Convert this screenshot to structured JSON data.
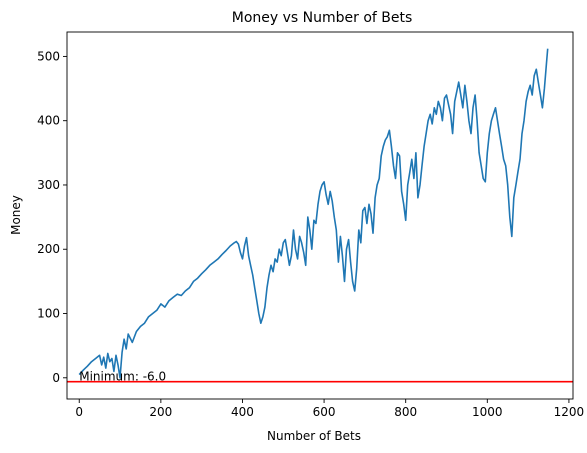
{
  "chart_data": {
    "type": "line",
    "title": "Money vs Number of Bets",
    "xlabel": "Number of Bets",
    "ylabel": "Money",
    "xlim": [
      -30,
      1210
    ],
    "ylim": [
      -33,
      538
    ],
    "xticks": [
      0,
      200,
      400,
      600,
      800,
      1000,
      1200
    ],
    "yticks": [
      0,
      100,
      200,
      300,
      400,
      500
    ],
    "grid": false,
    "series_color": "#1f77b4",
    "hline": {
      "y": -6,
      "color": "#ff0000"
    },
    "annotation": {
      "text": "Minimum: -6.0",
      "x": 0,
      "y": -6
    },
    "series": [
      {
        "x": [
          0,
          10,
          20,
          30,
          40,
          50,
          55,
          60,
          65,
          70,
          75,
          80,
          85,
          90,
          95,
          100,
          105,
          110,
          115,
          120,
          130,
          140,
          150,
          160,
          170,
          180,
          190,
          200,
          210,
          220,
          230,
          240,
          250,
          260,
          270,
          280,
          290,
          300,
          310,
          320,
          330,
          340,
          350,
          360,
          370,
          380,
          385,
          390,
          395,
          400,
          405,
          410,
          415,
          420,
          425,
          430,
          435,
          440,
          445,
          450,
          455,
          460,
          465,
          470,
          475,
          480,
          485,
          490,
          495,
          500,
          505,
          510,
          515,
          520,
          525,
          530,
          535,
          540,
          545,
          550,
          555,
          560,
          565,
          570,
          575,
          580,
          585,
          590,
          595,
          600,
          605,
          610,
          615,
          620,
          625,
          630,
          635,
          640,
          645,
          650,
          655,
          660,
          665,
          670,
          675,
          680,
          685,
          690,
          695,
          700,
          705,
          710,
          715,
          720,
          725,
          730,
          735,
          740,
          745,
          750,
          755,
          760,
          765,
          770,
          775,
          780,
          785,
          790,
          795,
          800,
          805,
          810,
          815,
          820,
          825,
          830,
          835,
          840,
          845,
          850,
          855,
          860,
          865,
          870,
          875,
          880,
          885,
          890,
          895,
          900,
          905,
          910,
          915,
          920,
          925,
          930,
          935,
          940,
          945,
          950,
          955,
          960,
          965,
          970,
          975,
          980,
          985,
          990,
          995,
          1000,
          1005,
          1010,
          1015,
          1020,
          1025,
          1030,
          1035,
          1040,
          1045,
          1050,
          1055,
          1060,
          1065,
          1070,
          1075,
          1080,
          1085,
          1090,
          1095,
          1100,
          1105,
          1110,
          1115,
          1120,
          1125,
          1130,
          1135,
          1140,
          1145,
          1148
        ],
        "values": [
          5,
          12,
          18,
          25,
          30,
          35,
          20,
          32,
          15,
          38,
          25,
          30,
          10,
          35,
          20,
          0,
          40,
          60,
          45,
          68,
          55,
          72,
          80,
          85,
          95,
          100,
          105,
          115,
          110,
          120,
          125,
          130,
          128,
          135,
          140,
          150,
          155,
          162,
          168,
          175,
          180,
          185,
          192,
          198,
          205,
          210,
          212,
          208,
          195,
          185,
          205,
          218,
          190,
          175,
          160,
          140,
          120,
          100,
          85,
          95,
          110,
          140,
          160,
          175,
          165,
          185,
          180,
          200,
          190,
          210,
          215,
          195,
          175,
          190,
          230,
          200,
          185,
          220,
          210,
          195,
          175,
          250,
          230,
          200,
          245,
          240,
          270,
          290,
          300,
          305,
          285,
          270,
          290,
          275,
          250,
          230,
          180,
          220,
          190,
          150,
          200,
          215,
          180,
          150,
          135,
          170,
          230,
          210,
          260,
          265,
          240,
          270,
          255,
          225,
          280,
          300,
          310,
          345,
          360,
          370,
          375,
          385,
          360,
          330,
          310,
          350,
          345,
          290,
          270,
          245,
          300,
          320,
          340,
          310,
          350,
          280,
          300,
          330,
          360,
          380,
          400,
          410,
          395,
          420,
          410,
          430,
          420,
          400,
          435,
          440,
          425,
          410,
          380,
          430,
          445,
          460,
          440,
          420,
          455,
          430,
          400,
          380,
          420,
          440,
          400,
          350,
          330,
          310,
          305,
          350,
          380,
          400,
          410,
          420,
          400,
          380,
          360,
          340,
          330,
          300,
          250,
          220,
          280,
          300,
          320,
          340,
          380,
          400,
          430,
          445,
          455,
          440,
          470,
          480,
          460,
          440,
          420,
          450,
          490,
          512
        ]
      }
    ]
  }
}
